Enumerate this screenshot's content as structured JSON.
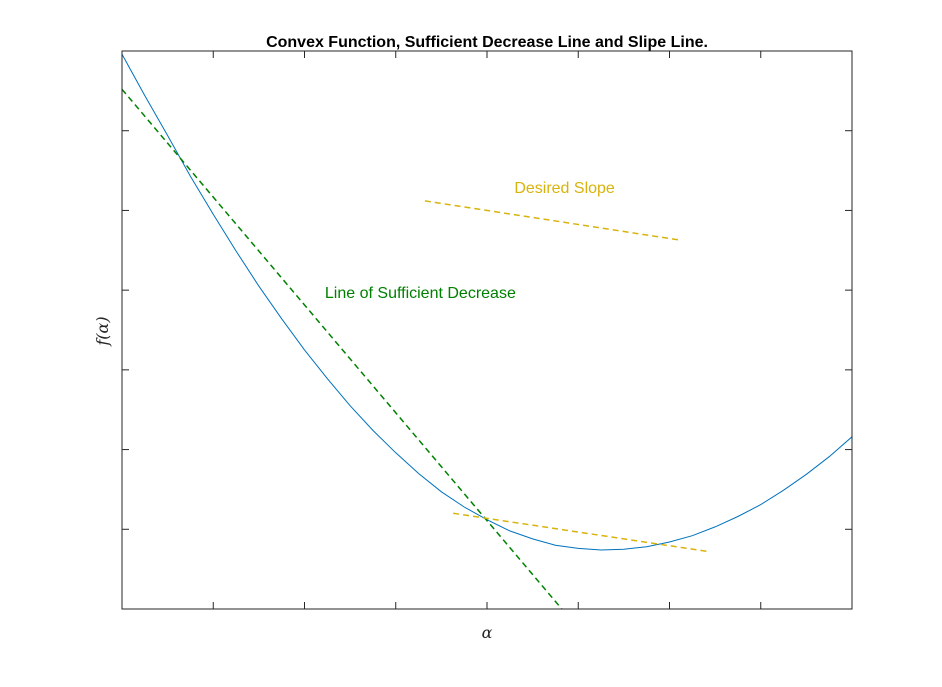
{
  "chart_data": {
    "type": "line",
    "title": "Convex Function, Sufficient Decrease Line and Slipe Line.",
    "xlabel": "α",
    "ylabel": "f(α)",
    "xlim": [
      0,
      8
    ],
    "ylim": [
      0,
      7
    ],
    "x_ticks": [
      0,
      1,
      2,
      3,
      4,
      5,
      6,
      7,
      8
    ],
    "y_ticks": [
      0,
      1,
      2,
      3,
      4,
      5,
      6,
      7
    ],
    "show_tick_labels": false,
    "grid": false,
    "series": [
      {
        "kind": "curve",
        "color": "#0072BD",
        "style": "solid",
        "x": [
          0,
          0.25,
          0.5,
          0.75,
          1,
          1.25,
          1.5,
          1.75,
          2,
          2.25,
          2.5,
          2.75,
          3,
          3.25,
          3.5,
          3.75,
          4,
          4.25,
          4.5,
          4.75,
          5,
          5.25,
          5.5,
          5.75,
          6,
          6.25,
          6.5,
          6.75,
          7,
          7.25,
          7.5,
          7.75,
          8
        ],
        "y": [
          6.96,
          6.44,
          5.94,
          5.43,
          4.95,
          4.49,
          4.05,
          3.64,
          3.25,
          2.89,
          2.55,
          2.24,
          1.96,
          1.7,
          1.47,
          1.28,
          1.12,
          0.98,
          0.88,
          0.8,
          0.76,
          0.74,
          0.75,
          0.78,
          0.84,
          0.92,
          1.03,
          1.16,
          1.31,
          1.49,
          1.69,
          1.91,
          2.16
        ]
      },
      {
        "name": "Line of Sufficient Decrease",
        "kind": "line",
        "color": "#008000",
        "style": "dashed",
        "x": [
          0,
          4.82
        ],
        "y": [
          6.52,
          0
        ]
      },
      {
        "name": "Desired Slope",
        "kind": "segment",
        "color": "#D9B30D",
        "style": "dashed",
        "x": [
          3.32,
          6.1
        ],
        "y": [
          5.12,
          4.63
        ]
      },
      {
        "kind": "segment",
        "color": "#D9B30D",
        "style": "dashed",
        "x": [
          3.63,
          6.43
        ],
        "y": [
          1.2,
          0.72
        ]
      }
    ],
    "annotations": [
      {
        "text": "Desired Slope",
        "x": 4.85,
        "y": 5.22,
        "color": "#D9B30D"
      },
      {
        "text": "Line of Sufficient Decrease",
        "x": 3.27,
        "y": 3.9,
        "color": "#008000"
      }
    ]
  }
}
